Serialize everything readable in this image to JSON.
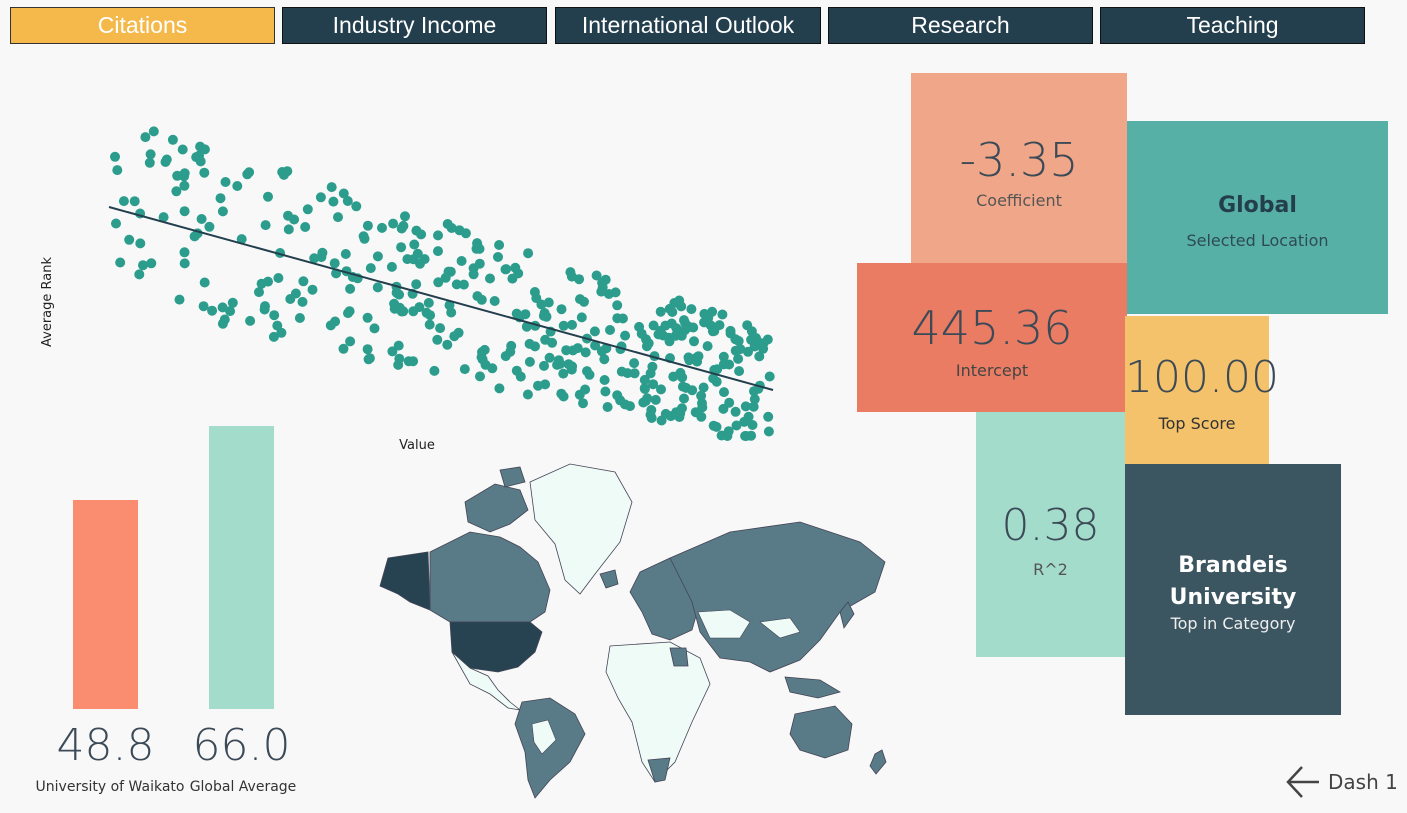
{
  "tabs": [
    {
      "label": "Citations",
      "active": true
    },
    {
      "label": "Industry Income",
      "active": false
    },
    {
      "label": "International Outlook",
      "active": false
    },
    {
      "label": "Research",
      "active": false
    },
    {
      "label": "Teaching",
      "active": false
    }
  ],
  "scatter": {
    "ylabel": "Average Rank",
    "xlabel": "Value",
    "point_color": "#2c9c8c",
    "line_color": "#233f4e"
  },
  "comparison": {
    "university_value": "48.8",
    "university_label": "University of Waikato",
    "university_color": "#fa8c70",
    "global_value": "66.0",
    "global_label": "Global Average",
    "global_color": "#a3dccb"
  },
  "stats": {
    "coefficient_value": "-3.35",
    "coefficient_label": "Coefficient",
    "coefficient_color": "#f0a688",
    "intercept_value": "445.36",
    "intercept_label": "Intercept",
    "intercept_color": "#e97c63",
    "location_value": "Global",
    "location_label": "Selected Location",
    "location_color": "#57b0a5",
    "top_score_value": "100.00",
    "top_score_label": "Top Score",
    "top_score_color": "#f4c26a",
    "r2_value": "0.38",
    "r2_label": "R^2",
    "r2_color": "#a3dccb",
    "top_university_name": "Brandeis University",
    "top_university_label": "Top in Category",
    "top_university_color": "#3b5561"
  },
  "nav": {
    "back_label": "Dash 1",
    "back_icon": "arrow-left-icon"
  },
  "chart_data": {
    "type": "scatter",
    "title": "",
    "xlabel": "Value",
    "ylabel": "Average Rank",
    "trend": {
      "coefficient": -3.35,
      "intercept": 445.36,
      "r2": 0.38
    }
  }
}
